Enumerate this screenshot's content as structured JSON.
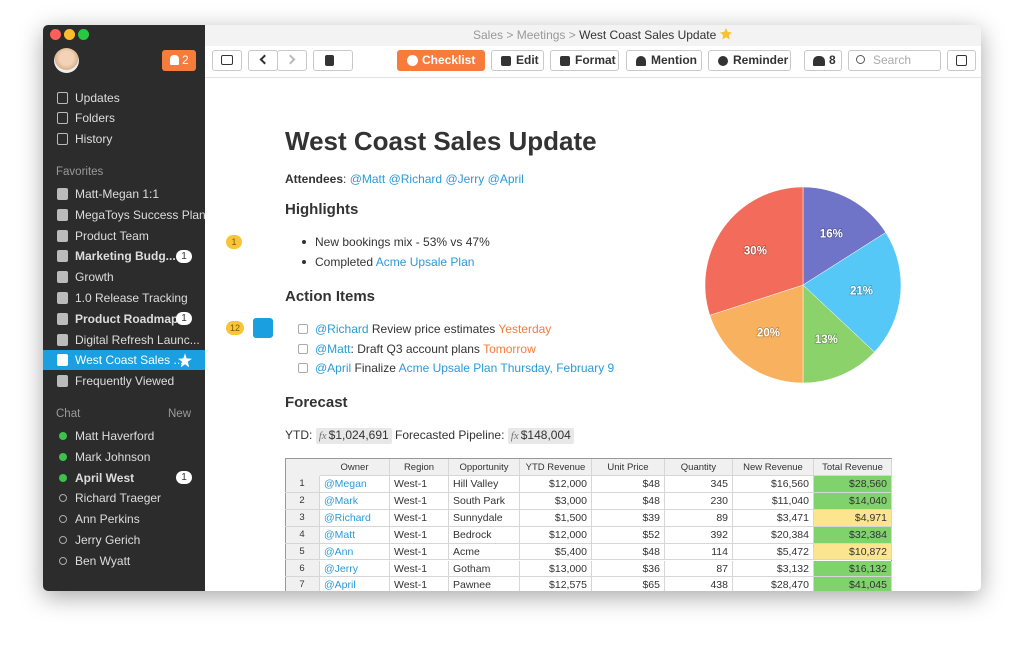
{
  "breadcrumb": [
    "Sales",
    "Meetings",
    "West Coast Sales Update"
  ],
  "sidebar": {
    "notifications": "2",
    "nav": [
      "Updates",
      "Folders",
      "History"
    ],
    "favorites_title": "Favorites",
    "favorites": [
      {
        "label": "Matt-Megan 1:1"
      },
      {
        "label": "MegaToys Success Plan"
      },
      {
        "label": "Product Team"
      },
      {
        "label": "Marketing Budg...",
        "bold": true,
        "badge": "1"
      },
      {
        "label": "Growth"
      },
      {
        "label": "1.0 Release Tracking"
      },
      {
        "label": "Product Roadmap",
        "bold": true,
        "badge": "1"
      },
      {
        "label": "Digital Refresh Launc..."
      },
      {
        "label": "West Coast Sales ...",
        "selected": true
      },
      {
        "label": "Frequently Viewed"
      }
    ],
    "chat_title": "Chat",
    "chat_new": "New",
    "chat": [
      {
        "label": "Matt Haverford",
        "online": true
      },
      {
        "label": "Mark Johnson",
        "online": true
      },
      {
        "label": "April West",
        "online": true,
        "bold": true,
        "badge": "1"
      },
      {
        "label": "Richard Traeger",
        "online": false
      },
      {
        "label": "Ann Perkins",
        "online": false
      },
      {
        "label": "Jerry Gerich",
        "online": false
      },
      {
        "label": "Ben Wyatt",
        "online": false
      }
    ]
  },
  "toolbar": {
    "checklist": "Checklist",
    "edit": "Edit",
    "format": "Format",
    "mention": "Mention",
    "reminder": "Reminder",
    "members": "8",
    "search": "Search"
  },
  "document": {
    "title": "West Coast Sales Update",
    "attendees_label": "Attendees",
    "attendees": [
      "@Matt",
      "@Richard",
      "@Jerry",
      "@April"
    ],
    "highlights_heading": "Highlights",
    "highlights_comments": "1",
    "highlights": [
      "New bookings mix - 53% vs 47%",
      "Completed"
    ],
    "highlight_link": "Acme Upsale Plan",
    "action_heading": "Action Items",
    "action_comments": "12",
    "actions": [
      {
        "mention": "@Richard",
        "text": "Review price estimates",
        "due": "Yesterday"
      },
      {
        "mention": "@Matt",
        "text": ": Draft Q3 account plans",
        "due": "Tomorrow"
      },
      {
        "mention": "@April",
        "text": "Finalize",
        "link": "Acme Upsale Plan",
        "due": "Thursday, February 9"
      }
    ],
    "forecast_heading": "Forecast",
    "ytd_label": "YTD:",
    "formula_icon": "fx",
    "ytd": "$1,024,691",
    "pipeline_label": "Forecasted Pipeline:",
    "pipeline": "$148,004"
  },
  "table": {
    "header": [
      "Owner",
      "Region",
      "Opportunity",
      "YTD Revenue",
      "Unit Price",
      "Quantity",
      "New Revenue",
      "Total Revenue"
    ],
    "rows": [
      [
        "1",
        "@Megan",
        "West-1",
        "Hill Valley",
        "$12,000",
        "$48",
        "345",
        "$16,560",
        "$28,560"
      ],
      [
        "2",
        "@Mark",
        "West-1",
        "South Park",
        "$3,000",
        "$48",
        "230",
        "$11,040",
        "$14,040"
      ],
      [
        "3",
        "@Richard",
        "West-1",
        "Sunnydale",
        "$1,500",
        "$39",
        "89",
        "$3,471",
        "$4,971"
      ],
      [
        "4",
        "@Matt",
        "West-1",
        "Bedrock",
        "$12,000",
        "$52",
        "392",
        "$20,384",
        "$32,384"
      ],
      [
        "5",
        "@Ann",
        "West-1",
        "Acme",
        "$5,400",
        "$48",
        "114",
        "$5,472",
        "$10,872"
      ],
      [
        "6",
        "@Jerry",
        "West-1",
        "Gotham",
        "$13,000",
        "$36",
        "87",
        "$3,132",
        "$16,132"
      ],
      [
        "7",
        "@April",
        "West-1",
        "Pawnee",
        "$12,575",
        "$65",
        "438",
        "$28,470",
        "$41,045"
      ]
    ],
    "total_colors": [
      "#7fd26c",
      "#7fd26c",
      "#fde58f",
      "#7fd26c",
      "#fde58f",
      "#7fd26c",
      "#7fd26c"
    ]
  },
  "chart_data": {
    "type": "pie",
    "values": [
      16,
      21,
      13,
      20,
      30
    ],
    "value_labels": [
      "16%",
      "21%",
      "13%",
      "20%",
      "30%"
    ],
    "colors": [
      "#6f74c9",
      "#56c8f7",
      "#8bd26a",
      "#f8b25f",
      "#f36b5a"
    ]
  }
}
